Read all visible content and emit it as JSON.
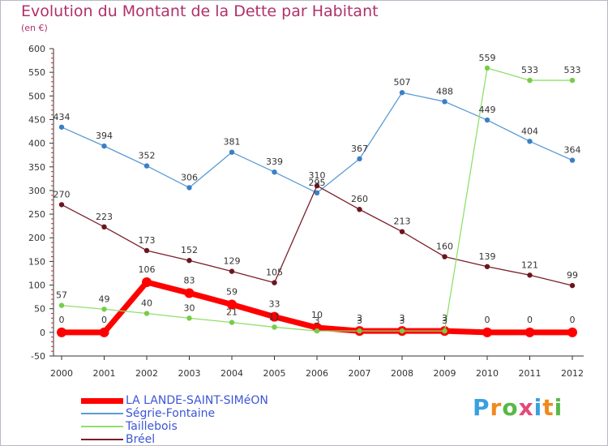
{
  "chart_data": {
    "type": "line",
    "title": "Evolution du Montant de la Dette par Habitant",
    "subtitle": "(en €)",
    "x": [
      "2000",
      "2001",
      "2002",
      "2003",
      "2004",
      "2005",
      "2006",
      "2007",
      "2008",
      "2009",
      "2010",
      "2011",
      "2012"
    ],
    "ylim": [
      -50,
      600
    ],
    "yticks": [
      -50,
      0,
      50,
      100,
      150,
      200,
      250,
      300,
      350,
      400,
      450,
      500,
      550,
      600
    ],
    "grid": false,
    "legend_position": "bottom-left",
    "series": [
      {
        "name": "Ségrie-Fontaine",
        "color": "#5b9bd5",
        "values": [
          434,
          394,
          352,
          306,
          381,
          339,
          295,
          367,
          507,
          488,
          449,
          404,
          364
        ]
      },
      {
        "name": "Taillebois",
        "color": "#8fe06a",
        "values": [
          57,
          49,
          40,
          30,
          21,
          11,
          3,
          3,
          3,
          3,
          559,
          533,
          533
        ]
      },
      {
        "name": "Bréel",
        "color": "#7a1f2a",
        "values": [
          270,
          223,
          173,
          152,
          129,
          105,
          310,
          260,
          213,
          160,
          139,
          121,
          99
        ]
      },
      {
        "name": "LA LANDE-SAINT-SIMéON",
        "color": "#ff0000",
        "values": [
          0,
          0,
          106,
          83,
          59,
          33,
          10,
          3,
          3,
          3,
          0,
          0,
          0
        ]
      }
    ],
    "legend_order": [
      "LA LANDE-SAINT-SIMéON",
      "Ségrie-Fontaine",
      "Taillebois",
      "Bréel"
    ]
  },
  "logo_text": "Proxiti"
}
